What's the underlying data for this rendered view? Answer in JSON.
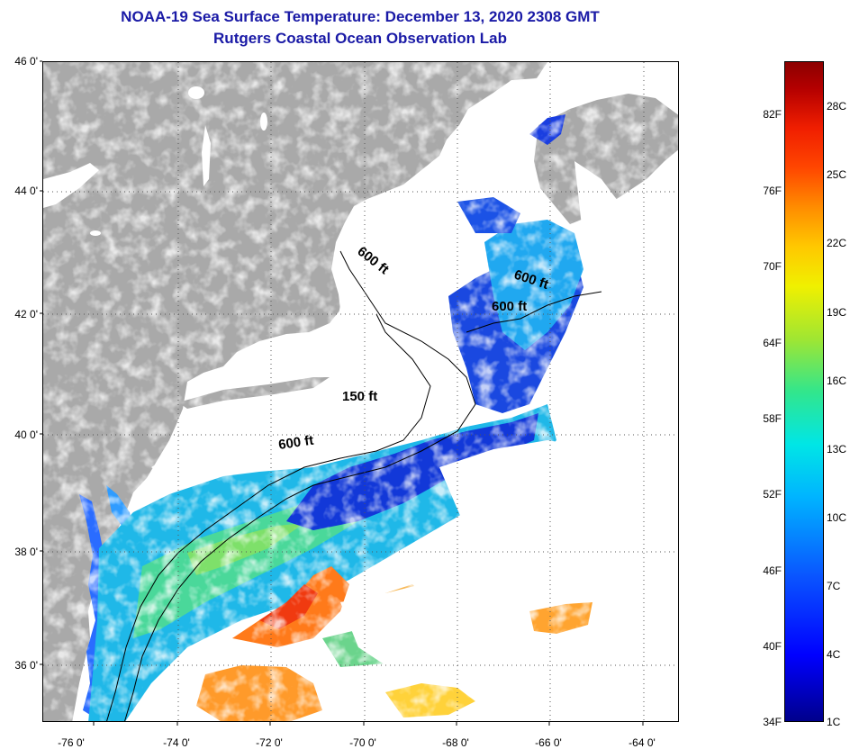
{
  "title": {
    "line1": "NOAA-19 Sea Surface Temperature:  December 13, 2020 2308 GMT",
    "line2": "Rutgers Coastal Ocean Observation Lab"
  },
  "axes": {
    "lat_labels": [
      "46 0'",
      "44 0'",
      "42 0'",
      "40 0'",
      "38 0'",
      "36 0'"
    ],
    "lon_labels": [
      "-76 0'",
      "-74 0'",
      "-72 0'",
      "-70 0'",
      "-68 0'",
      "-66 0'",
      "-64 0'"
    ]
  },
  "contours": {
    "label_600_north": "600 ft",
    "label_600_east_a": "600 ft",
    "label_600_east_b": "600 ft",
    "label_150": "150 ft",
    "label_600_south": "600 ft"
  },
  "colorbar": {
    "fahrenheit": [
      "82F",
      "76F",
      "70F",
      "64F",
      "58F",
      "52F",
      "46F",
      "40F",
      "34F"
    ],
    "celsius": [
      "28C",
      "25C",
      "22C",
      "19C",
      "16C",
      "13C",
      "10C",
      "7C",
      "4C",
      "1C"
    ]
  },
  "colors": {
    "land": "#a9a9a9",
    "lake": "#ffffff",
    "cloud": "#ffffff",
    "title": "#1a1aa6"
  }
}
